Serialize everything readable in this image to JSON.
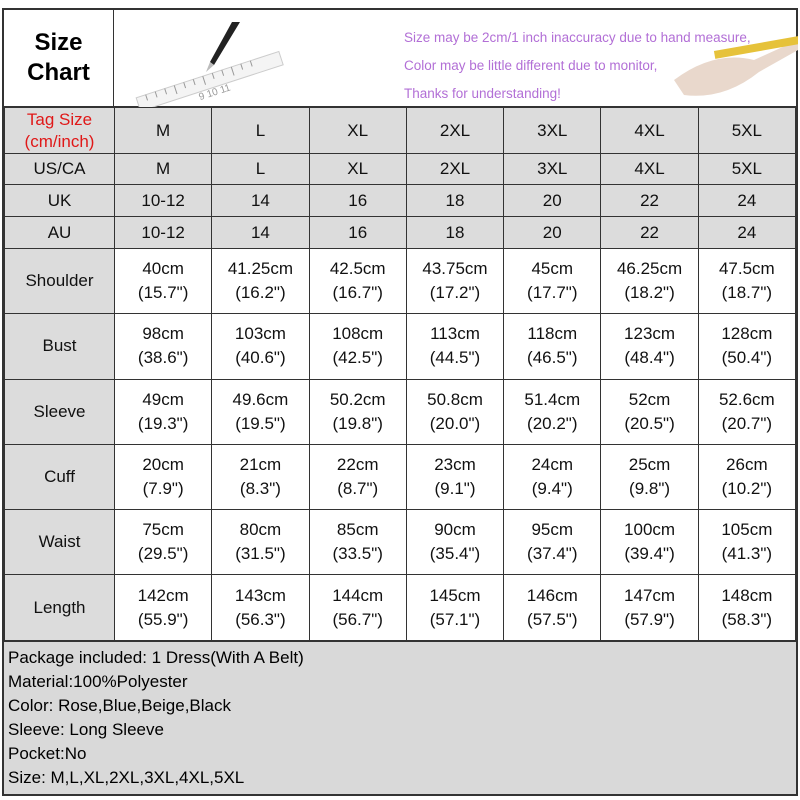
{
  "title": [
    "Size",
    "Chart"
  ],
  "notes": [
    "Size may be 2cm/1 inch inaccuracy due to hand measure,",
    "Color may be little different due to monitor,",
    "Thanks for understanding!"
  ],
  "colors": {
    "note_text": "#b26fd6",
    "tag_label": "#e01818",
    "cell_gray": "#dcdcdc"
  },
  "tag_label": [
    "Tag Size",
    "(cm/inch)"
  ],
  "sizes": [
    "M",
    "L",
    "XL",
    "2XL",
    "3XL",
    "4XL",
    "5XL"
  ],
  "region_rows": [
    {
      "label": "US/CA",
      "values": [
        "M",
        "L",
        "XL",
        "2XL",
        "3XL",
        "4XL",
        "5XL"
      ]
    },
    {
      "label": "UK",
      "values": [
        "10-12",
        "14",
        "16",
        "18",
        "20",
        "22",
        "24"
      ]
    },
    {
      "label": "AU",
      "values": [
        "10-12",
        "14",
        "16",
        "18",
        "20",
        "22",
        "24"
      ]
    }
  ],
  "measure_rows": [
    {
      "label": "Shoulder",
      "cm": [
        "40cm",
        "41.25cm",
        "42.5cm",
        "43.75cm",
        "45cm",
        "46.25cm",
        "47.5cm"
      ],
      "inch": [
        "(15.7\")",
        "(16.2\")",
        "(16.7\")",
        "(17.2\")",
        "(17.7\")",
        "(18.2\")",
        "(18.7\")"
      ]
    },
    {
      "label": "Bust",
      "cm": [
        "98cm",
        "103cm",
        "108cm",
        "113cm",
        "118cm",
        "123cm",
        "128cm"
      ],
      "inch": [
        "(38.6\")",
        "(40.6\")",
        "(42.5\")",
        "(44.5\")",
        "(46.5\")",
        "(48.4\")",
        "(50.4\")"
      ]
    },
    {
      "label": "Sleeve",
      "cm": [
        "49cm",
        "49.6cm",
        "50.2cm",
        "50.8cm",
        "51.4cm",
        "52cm",
        "52.6cm"
      ],
      "inch": [
        "(19.3\")",
        "(19.5\")",
        "(19.8\")",
        "(20.0\")",
        "(20.2\")",
        "(20.5\")",
        "(20.7\")"
      ]
    },
    {
      "label": "Cuff",
      "cm": [
        "20cm",
        "21cm",
        "22cm",
        "23cm",
        "24cm",
        "25cm",
        "26cm"
      ],
      "inch": [
        "(7.9\")",
        "(8.3\")",
        "(8.7\")",
        "(9.1\")",
        "(9.4\")",
        "(9.8\")",
        "(10.2\")"
      ]
    },
    {
      "label": "Waist",
      "cm": [
        "75cm",
        "80cm",
        "85cm",
        "90cm",
        "95cm",
        "100cm",
        "105cm"
      ],
      "inch": [
        "(29.5\")",
        "(31.5\")",
        "(33.5\")",
        "(35.4\")",
        "(37.4\")",
        "(39.4\")",
        "(41.3\")"
      ]
    },
    {
      "label": "Length",
      "cm": [
        "142cm",
        "143cm",
        "144cm",
        "145cm",
        "146cm",
        "147cm",
        "148cm"
      ],
      "inch": [
        "(55.9\")",
        "(56.3\")",
        "(56.7\")",
        "(57.1\")",
        "(57.5\")",
        "(57.9\")",
        "(58.3\")"
      ]
    }
  ],
  "details": [
    "Package included: 1 Dress(With A Belt)",
    "Material:100%Polyester",
    "Color: Rose,Blue,Beige,Black",
    "Sleeve: Long Sleeve",
    "Pocket:No",
    "Size: M,L,XL,2XL,3XL,4XL,5XL"
  ]
}
